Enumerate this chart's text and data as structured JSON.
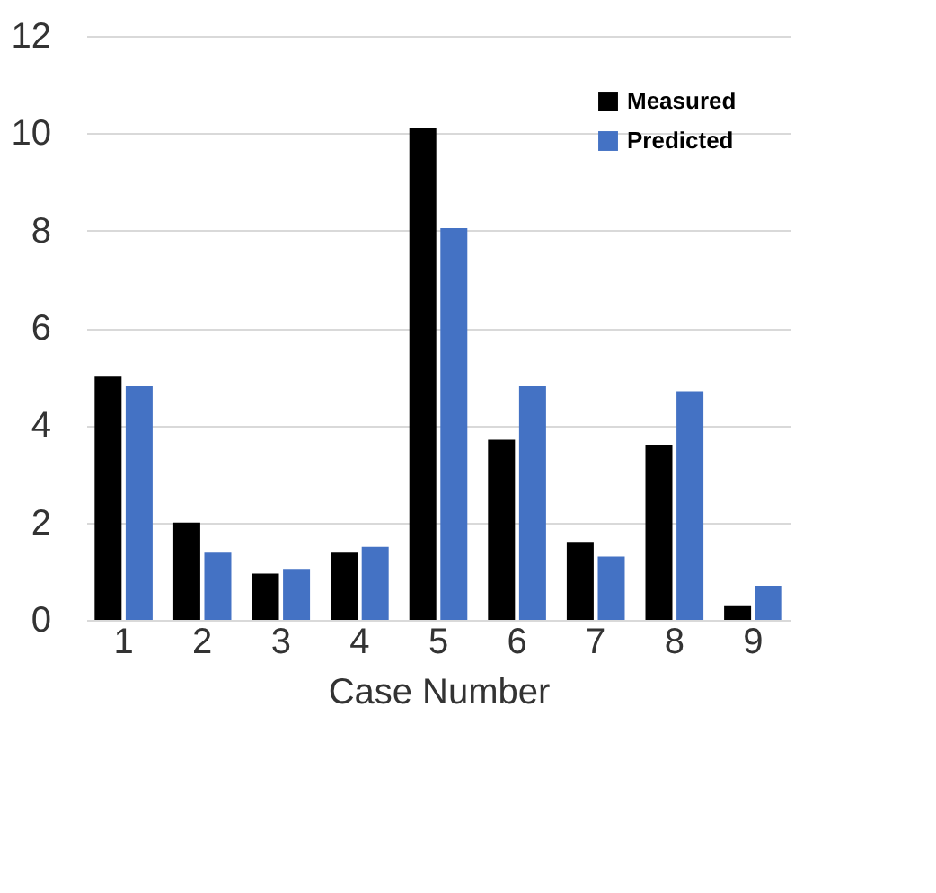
{
  "chart_data": {
    "type": "bar",
    "xlabel": "Case Number",
    "categories": [
      "1",
      "2",
      "3",
      "4",
      "5",
      "6",
      "7",
      "8",
      "9"
    ],
    "series": [
      {
        "name": "Measured",
        "color": "#000000",
        "values": [
          5.0,
          2.0,
          0.95,
          1.4,
          10.1,
          3.7,
          1.6,
          3.6,
          0.3
        ]
      },
      {
        "name": "Predicted",
        "color": "#4472c4",
        "values": [
          4.8,
          1.4,
          1.05,
          1.5,
          8.05,
          4.8,
          1.3,
          4.7,
          0.7
        ]
      }
    ],
    "ylim": [
      0,
      12
    ],
    "yticks": [
      0,
      2,
      4,
      6,
      8,
      10,
      12
    ],
    "grid": "y",
    "legend": "top right"
  }
}
